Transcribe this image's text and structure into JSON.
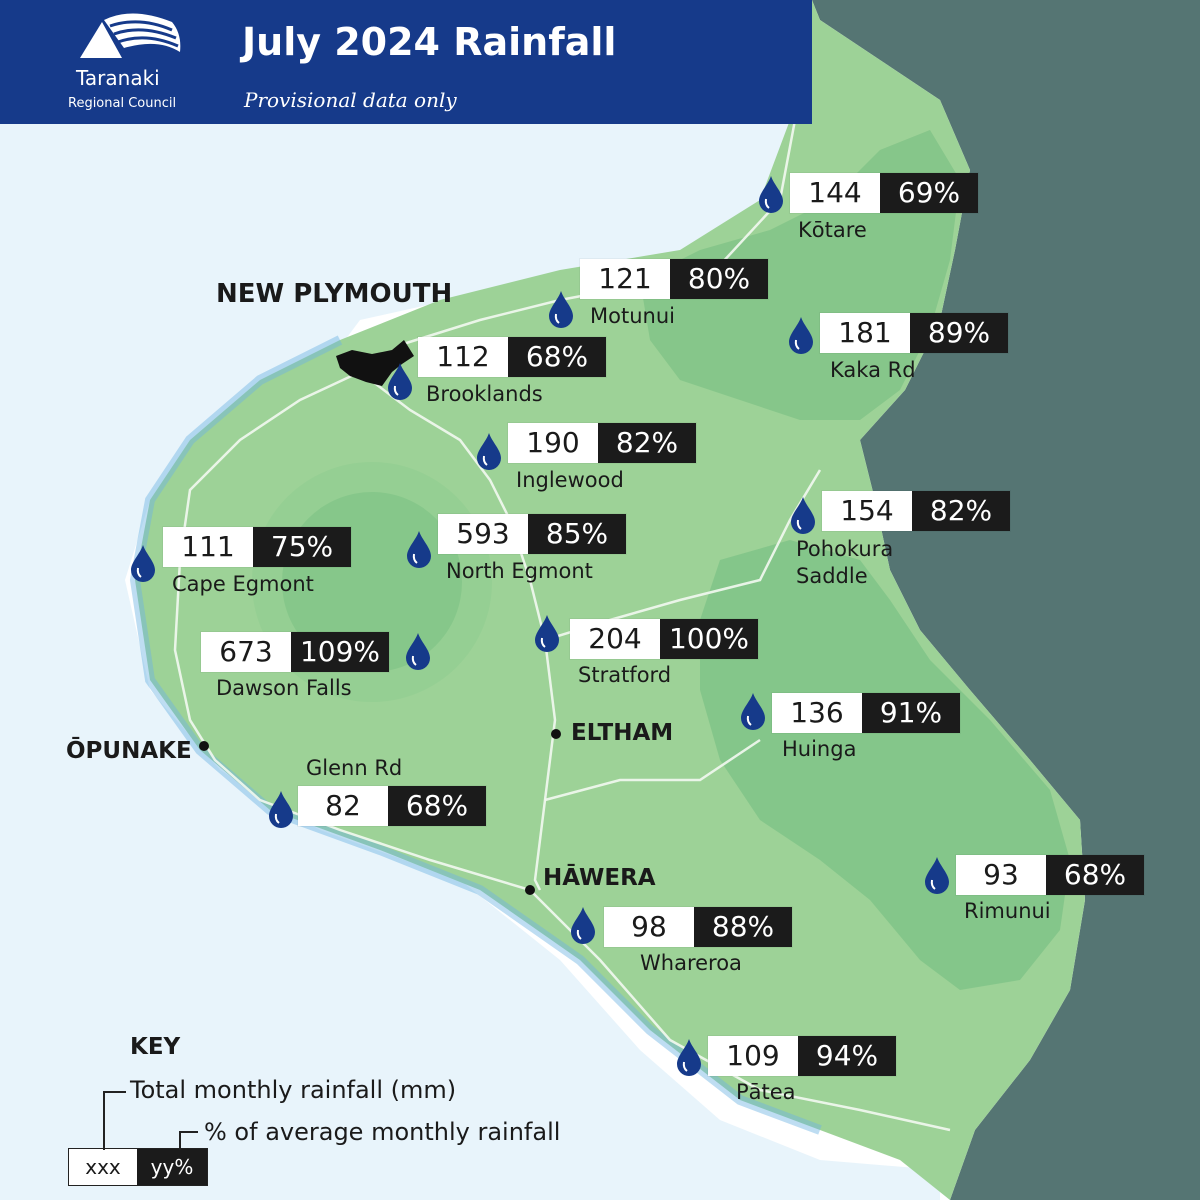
{
  "header": {
    "title": "July 2024 Rainfall",
    "subtitle": "Provisional data only",
    "logo_name": "Taranaki",
    "logo_sub": "Regional Council"
  },
  "stations": [
    {
      "name": "Kōtare",
      "total": "144",
      "pct": "69%"
    },
    {
      "name": "Motunui",
      "total": "121",
      "pct": "80%"
    },
    {
      "name": "Kaka Rd",
      "total": "181",
      "pct": "89%"
    },
    {
      "name": "Brooklands",
      "total": "112",
      "pct": "68%"
    },
    {
      "name": "Inglewood",
      "total": "190",
      "pct": "82%"
    },
    {
      "name": "Pohokura Saddle",
      "total": "154",
      "pct": "82%"
    },
    {
      "name": "Cape Egmont",
      "total": "111",
      "pct": "75%"
    },
    {
      "name": "North Egmont",
      "total": "593",
      "pct": "85%"
    },
    {
      "name": "Dawson Falls",
      "total": "673",
      "pct": "109%"
    },
    {
      "name": "Stratford",
      "total": "204",
      "pct": "100%"
    },
    {
      "name": "Huinga",
      "total": "136",
      "pct": "91%"
    },
    {
      "name": "Glenn Rd",
      "total": "82",
      "pct": "68%"
    },
    {
      "name": "Rimunui",
      "total": "93",
      "pct": "68%"
    },
    {
      "name": "Whareroa",
      "total": "98",
      "pct": "88%"
    },
    {
      "name": "Pātea",
      "total": "109",
      "pct": "94%"
    }
  ],
  "towns": {
    "new_plymouth": "NEW PLYMOUTH",
    "opunake": "ŌPUNAKE",
    "eltham": "ELTHAM",
    "hawera": "HĀWERA"
  },
  "key": {
    "title": "KEY",
    "line1": "Total monthly rainfall (mm)",
    "line2": "% of average monthly rainfall",
    "sample_total": "xxx",
    "sample_pct": "yy%"
  },
  "colors": {
    "header_bg": "#163a8a",
    "land": "#9dd297",
    "land_dark": "#7cc185",
    "ocean_east": "#557573",
    "sea_glow": "#bfe0f3",
    "coast_blue": "#3f9ad8",
    "drop": "#163a8a",
    "pct_box": "#1b1b1b"
  },
  "icons": {
    "logo": "taranaki-mountain-logo",
    "station_marker": "raindrop-icon"
  }
}
